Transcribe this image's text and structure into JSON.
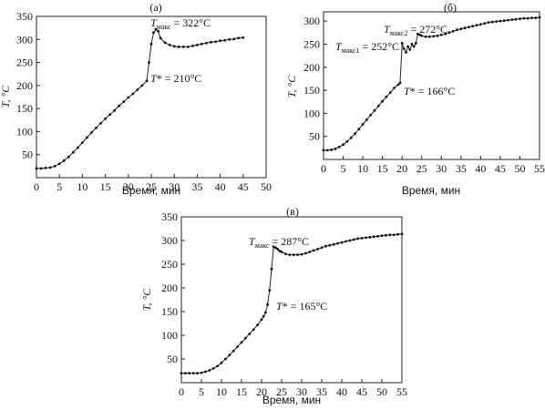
{
  "chart_data": [
    {
      "panel_label": "(а)",
      "type": "line",
      "xlabel": "Время, мин",
      "ylabel": "T, °C",
      "xlim": [
        0,
        50
      ],
      "ylim": [
        0,
        350
      ],
      "xticks": [
        "0",
        "5",
        "10",
        "15",
        "20",
        "25",
        "30",
        "35",
        "40",
        "45",
        "50"
      ],
      "yticks": [
        "50",
        "100",
        "150",
        "200",
        "250",
        "300",
        "350"
      ],
      "grid": false,
      "series": [
        {
          "x": [
            0,
            1,
            2,
            3,
            4,
            5,
            6,
            7,
            8,
            9,
            10,
            11,
            12,
            13,
            14,
            15,
            16,
            17,
            18,
            19,
            20,
            21,
            22,
            23,
            24,
            24.5,
            25,
            25.5,
            26,
            26.5,
            27,
            28,
            29,
            30,
            31,
            32,
            33,
            34,
            35,
            36,
            37,
            38,
            39,
            40,
            41,
            42,
            43,
            44,
            45
          ],
          "y": [
            20,
            20,
            21,
            22,
            25,
            30,
            37,
            45,
            55,
            65,
            76,
            87,
            98,
            108,
            118,
            128,
            137,
            146,
            156,
            165,
            174,
            182,
            191,
            200,
            210,
            250,
            290,
            315,
            322,
            318,
            303,
            293,
            288,
            285,
            284,
            284,
            284,
            286,
            288,
            290,
            292,
            294,
            295,
            297,
            298,
            300,
            301,
            303,
            304
          ]
        }
      ],
      "annotations": [
        {
          "symbol": "T",
          "sub": "макс",
          "text": " = 322°C",
          "x": 26,
          "y": 322
        },
        {
          "symbol": "T",
          "sub": "",
          "text": "* = 210°C",
          "x": 24,
          "y": 210
        }
      ]
    },
    {
      "panel_label": "(б)",
      "type": "line",
      "xlabel": "Время, мин",
      "ylabel": "T, °C",
      "xlim": [
        0,
        55
      ],
      "ylim": [
        0,
        320
      ],
      "xticks": [
        "0",
        "5",
        "10",
        "15",
        "20",
        "25",
        "30",
        "35",
        "40",
        "45",
        "50",
        "55"
      ],
      "yticks": [
        "50",
        "100",
        "150",
        "200",
        "250",
        "300"
      ],
      "grid": false,
      "series": [
        {
          "x": [
            0,
            1,
            2,
            3,
            4,
            5,
            6,
            7,
            8,
            9,
            10,
            11,
            12,
            13,
            14,
            15,
            16,
            17,
            18,
            19,
            19.5,
            20,
            20.5,
            21,
            21.5,
            22,
            22.5,
            23,
            23.5,
            24,
            24.5,
            25,
            26,
            27,
            28,
            29,
            30,
            31,
            32,
            33,
            34,
            35,
            36,
            37,
            38,
            39,
            40,
            41,
            42,
            43,
            44,
            45,
            46,
            47,
            48,
            49,
            50,
            51,
            52,
            53,
            54,
            55
          ],
          "y": [
            20,
            20,
            21,
            23,
            27,
            32,
            39,
            47,
            56,
            66,
            76,
            86,
            96,
            106,
            116,
            126,
            136,
            145,
            155,
            162,
            166,
            252,
            240,
            232,
            245,
            238,
            250,
            245,
            252,
            272,
            270,
            268,
            266,
            266,
            267,
            268,
            270,
            272,
            275,
            278,
            281,
            283,
            285,
            287,
            289,
            291,
            293,
            295,
            297,
            298,
            299,
            300,
            301,
            302,
            303,
            304,
            305,
            306,
            306,
            307,
            307,
            308
          ]
        }
      ],
      "annotations": [
        {
          "symbol": "T",
          "sub": "макс2",
          "text": " = 272°C",
          "x": 24,
          "y": 272
        },
        {
          "symbol": "T",
          "sub": "макс1",
          "text": " = 252°C",
          "x": 20,
          "y": 252
        },
        {
          "symbol": "T",
          "sub": "",
          "text": "* = 166°C",
          "x": 19.5,
          "y": 166
        }
      ]
    },
    {
      "panel_label": "(в)",
      "type": "line",
      "xlabel": "Время, мин",
      "ylabel": "T, °C",
      "xlim": [
        0,
        55
      ],
      "ylim": [
        0,
        350
      ],
      "xticks": [
        "0",
        "5",
        "10",
        "15",
        "20",
        "25",
        "30",
        "35",
        "40",
        "45",
        "50",
        "55"
      ],
      "yticks": [
        "50",
        "100",
        "150",
        "200",
        "250",
        "300",
        "350"
      ],
      "grid": false,
      "series": [
        {
          "x": [
            0,
            1,
            2,
            3,
            4,
            5,
            6,
            7,
            8,
            9,
            10,
            11,
            12,
            13,
            14,
            15,
            16,
            17,
            18,
            19,
            20,
            20.5,
            21,
            21.5,
            22,
            22.5,
            23,
            23.5,
            24,
            24.5,
            25,
            26,
            27,
            28,
            29,
            30,
            31,
            32,
            33,
            34,
            35,
            36,
            37,
            38,
            39,
            40,
            41,
            42,
            43,
            44,
            45,
            46,
            47,
            48,
            49,
            50,
            51,
            52,
            53,
            54,
            55
          ],
          "y": [
            20,
            20,
            20,
            20,
            20,
            21,
            23,
            26,
            30,
            35,
            42,
            50,
            58,
            67,
            76,
            85,
            94,
            103,
            112,
            122,
            133,
            140,
            148,
            165,
            195,
            240,
            287,
            285,
            282,
            278,
            276,
            272,
            270,
            270,
            270,
            271,
            273,
            276,
            279,
            282,
            285,
            288,
            290,
            292,
            294,
            296,
            298,
            300,
            302,
            304,
            305,
            306,
            307,
            308,
            309,
            310,
            311,
            312,
            312,
            313,
            314
          ]
        }
      ],
      "annotations": [
        {
          "symbol": "T",
          "sub": "макс",
          "text": " = 287°C",
          "x": 23,
          "y": 287
        },
        {
          "symbol": "T",
          "sub": "",
          "text": "* = 165°C",
          "x": 21.5,
          "y": 165
        }
      ]
    }
  ]
}
